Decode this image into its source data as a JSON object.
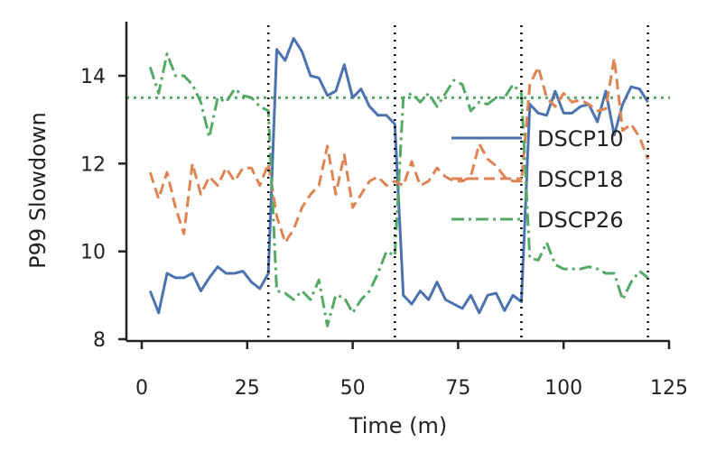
{
  "chart_data": {
    "type": "line",
    "title": "",
    "xlabel": "Time (m)",
    "ylabel": "P99 Slowdown",
    "xlim": [
      -4,
      126
    ],
    "ylim": [
      8,
      15.2
    ],
    "xticks": [
      0,
      25,
      50,
      75,
      100,
      125
    ],
    "yticks": [
      8,
      10,
      12,
      14
    ],
    "grid": false,
    "legend_position": "center-right",
    "reference_line": {
      "y": 13.5,
      "style": "dotted",
      "color": "#55a868"
    },
    "vlines": [
      30,
      60,
      90,
      120
    ],
    "series": [
      {
        "name": "DSCP10",
        "style": "solid",
        "color": "#4c72b0",
        "x": [
          2,
          4,
          6,
          8,
          10,
          12,
          14,
          16,
          18,
          20,
          22,
          24,
          26,
          28,
          30,
          32,
          34,
          36,
          38,
          40,
          42,
          44,
          46,
          48,
          50,
          52,
          54,
          56,
          58,
          60,
          62,
          64,
          66,
          68,
          70,
          72,
          74,
          76,
          78,
          80,
          82,
          84,
          86,
          88,
          90,
          92,
          94,
          96,
          98,
          100,
          102,
          104,
          106,
          108,
          110,
          112,
          114,
          116,
          118,
          120
        ],
        "values": [
          9.1,
          8.6,
          9.5,
          9.4,
          9.4,
          9.5,
          9.1,
          9.4,
          9.65,
          9.5,
          9.5,
          9.55,
          9.3,
          9.15,
          9.5,
          14.6,
          14.35,
          14.85,
          14.55,
          14.0,
          13.95,
          13.55,
          13.65,
          14.25,
          13.5,
          13.7,
          13.3,
          13.1,
          13.1,
          12.9,
          9.0,
          8.8,
          9.1,
          8.9,
          9.3,
          8.9,
          8.8,
          8.7,
          9.0,
          8.6,
          9.0,
          9.05,
          8.65,
          9.0,
          8.85,
          13.35,
          13.15,
          13.1,
          13.65,
          13.15,
          13.15,
          13.3,
          13.35,
          12.95,
          13.65,
          12.65,
          13.35,
          13.75,
          13.7,
          13.4
        ]
      },
      {
        "name": "DSCP18",
        "style": "dashed",
        "color": "#dd8452",
        "x": [
          2,
          4,
          6,
          8,
          10,
          12,
          14,
          16,
          18,
          20,
          22,
          24,
          26,
          28,
          30,
          32,
          34,
          36,
          38,
          40,
          42,
          44,
          46,
          48,
          50,
          52,
          54,
          56,
          58,
          60,
          62,
          64,
          66,
          68,
          70,
          72,
          74,
          76,
          78,
          80,
          82,
          84,
          86,
          88,
          90,
          92,
          94,
          96,
          98,
          100,
          102,
          104,
          106,
          108,
          110,
          112,
          114,
          116,
          118,
          120
        ],
        "values": [
          11.8,
          11.2,
          11.8,
          11.0,
          10.4,
          12.0,
          11.3,
          11.7,
          11.5,
          11.9,
          11.6,
          11.9,
          11.9,
          11.5,
          12.0,
          10.8,
          10.2,
          10.5,
          11.0,
          11.3,
          11.5,
          12.4,
          11.3,
          12.2,
          11.0,
          11.3,
          11.6,
          11.7,
          11.5,
          11.6,
          11.5,
          12.05,
          11.5,
          11.6,
          11.9,
          11.7,
          11.6,
          11.6,
          11.7,
          12.45,
          12.1,
          11.95,
          11.7,
          11.6,
          11.6,
          13.8,
          14.2,
          13.5,
          13.3,
          13.6,
          13.4,
          13.45,
          13.35,
          13.2,
          13.25,
          14.4,
          12.75,
          12.9,
          12.6,
          12.1
        ]
      },
      {
        "name": "DSCP26",
        "style": "dashdot",
        "color": "#55a868",
        "x": [
          2,
          4,
          6,
          8,
          10,
          12,
          14,
          16,
          18,
          20,
          22,
          24,
          26,
          28,
          30,
          32,
          34,
          36,
          38,
          40,
          42,
          44,
          46,
          48,
          50,
          52,
          54,
          56,
          58,
          60,
          62,
          64,
          66,
          68,
          70,
          72,
          74,
          76,
          78,
          80,
          82,
          84,
          86,
          88,
          90,
          92,
          94,
          96,
          98,
          100,
          102,
          104,
          106,
          108,
          110,
          112,
          114,
          116,
          118,
          120
        ],
        "values": [
          14.2,
          13.6,
          14.5,
          14.0,
          14.0,
          13.8,
          13.4,
          12.6,
          13.5,
          13.4,
          13.7,
          13.55,
          13.5,
          13.3,
          13.2,
          9.1,
          9.05,
          8.9,
          9.1,
          8.9,
          9.35,
          8.3,
          9.0,
          8.95,
          8.6,
          8.9,
          9.1,
          9.5,
          10.0,
          9.9,
          13.5,
          13.6,
          13.4,
          13.6,
          13.3,
          13.6,
          13.9,
          13.8,
          13.2,
          13.4,
          13.35,
          13.5,
          13.5,
          13.8,
          13.6,
          9.85,
          9.8,
          10.2,
          9.7,
          9.6,
          9.6,
          9.6,
          9.65,
          9.6,
          9.5,
          9.5,
          8.9,
          9.3,
          9.55,
          9.4
        ]
      }
    ]
  }
}
